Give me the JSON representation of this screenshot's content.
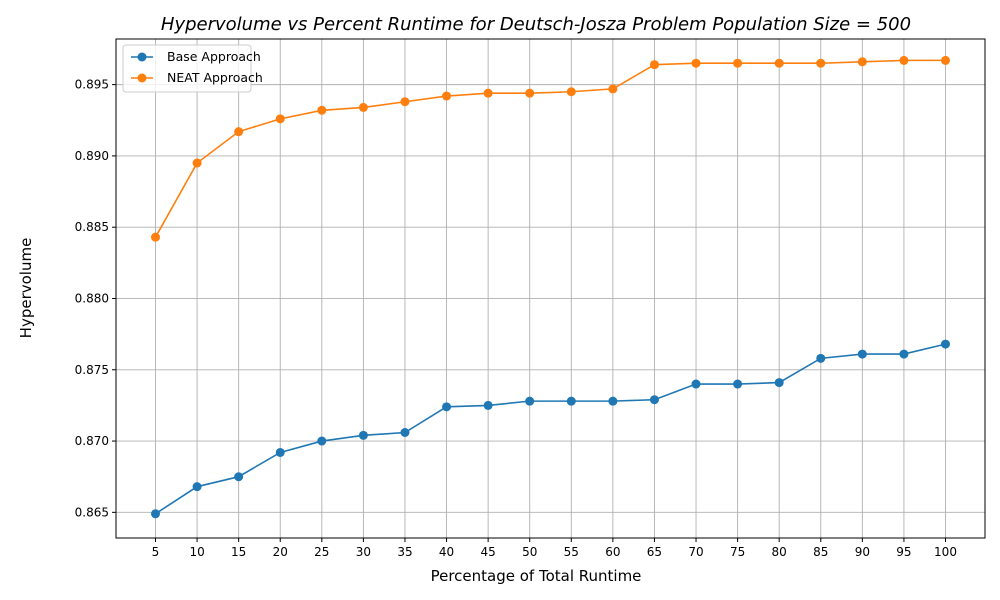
{
  "chart_data": {
    "type": "line",
    "title": "Hypervolume vs Percent Runtime for Deutsch-Josza Problem Population Size = 500",
    "xlabel": "Percentage of Total Runtime",
    "ylabel": "Hypervolume",
    "x": [
      5,
      10,
      15,
      20,
      25,
      30,
      35,
      40,
      45,
      50,
      55,
      60,
      65,
      70,
      75,
      80,
      85,
      90,
      95,
      100
    ],
    "xlim": [
      0.25,
      104.75
    ],
    "ylim": [
      0.8632,
      0.8982
    ],
    "yticks": [
      "0.865",
      "0.870",
      "0.875",
      "0.880",
      "0.885",
      "0.890",
      "0.895"
    ],
    "grid": true,
    "legend_position": "top-left",
    "series": [
      {
        "name": "Base Approach",
        "color": "#1f77b4",
        "values": [
          0.8649,
          0.8668,
          0.8675,
          0.8692,
          0.87,
          0.8704,
          0.8706,
          0.8724,
          0.8725,
          0.8728,
          0.8728,
          0.8728,
          0.8729,
          0.874,
          0.874,
          0.8741,
          0.8758,
          0.8761,
          0.8761,
          0.8768
        ]
      },
      {
        "name": "NEAT Approach",
        "color": "#ff7f0e",
        "values": [
          0.8843,
          0.8895,
          0.8917,
          0.8926,
          0.8932,
          0.8934,
          0.8938,
          0.8942,
          0.8944,
          0.8944,
          0.8945,
          0.8947,
          0.8964,
          0.8965,
          0.8965,
          0.8965,
          0.8965,
          0.8966,
          0.8967,
          0.8967
        ]
      }
    ]
  }
}
